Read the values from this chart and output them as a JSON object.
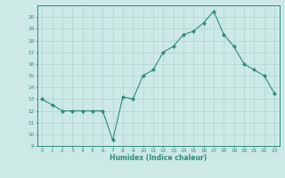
{
  "x_data": [
    0,
    1,
    2,
    3,
    4,
    5,
    6,
    7,
    8,
    9,
    10,
    11,
    12,
    13,
    14,
    15,
    16,
    17,
    18,
    19,
    20,
    21,
    22,
    23
  ],
  "y_data": [
    13,
    12.5,
    12,
    12,
    12,
    12,
    12,
    9.5,
    13.2,
    13,
    15,
    15.5,
    17,
    17.5,
    18.5,
    18.8,
    19.5,
    20.5,
    18.5,
    17.5,
    16,
    15.5,
    15,
    13.5
  ],
  "line_color": "#2e8b7a",
  "marker_color": "#2e8b7a",
  "bg_color": "#cce9e5",
  "grid_color": "#aed4cf",
  "xlabel": "Humidex (Indice chaleur)",
  "ylim": [
    9,
    21
  ],
  "xlim": [
    -0.5,
    23.5
  ],
  "yticks": [
    9,
    10,
    11,
    12,
    13,
    14,
    15,
    16,
    17,
    18,
    19,
    20
  ],
  "xticks": [
    0,
    1,
    2,
    3,
    4,
    5,
    6,
    7,
    8,
    9,
    10,
    11,
    12,
    13,
    14,
    15,
    16,
    17,
    18,
    19,
    20,
    21,
    22,
    23
  ]
}
